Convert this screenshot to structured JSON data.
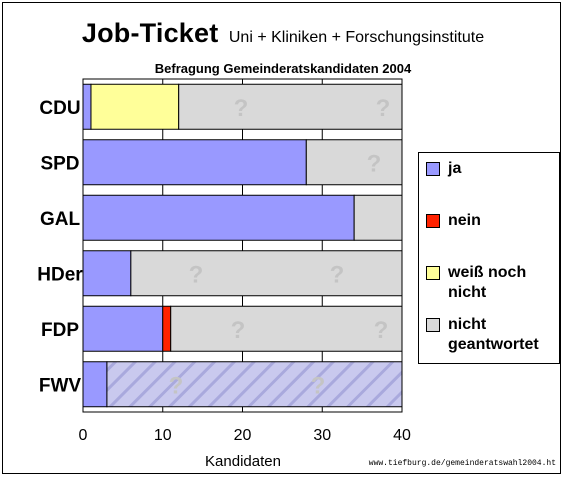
{
  "title": "Job-Ticket",
  "title_suffix": "Uni + Kliniken + Forschungsinstitute",
  "subtitle": "Befragung Gemeinderatskandidaten 2004",
  "footer": "www.tiefburg.de/gemeinderatswahl2004.ht",
  "legend": [
    {
      "label": "ja",
      "color": "#9999ff"
    },
    {
      "label": "nein",
      "color": "#ff2200"
    },
    {
      "label": "weiß noch nicht",
      "color": "#ffff99"
    },
    {
      "label": "nicht geantwortet",
      "color": "#d9d9d9"
    }
  ],
  "chart_data": {
    "type": "bar",
    "orientation": "horizontal",
    "stacked": true,
    "categories": [
      "CDU",
      "SPD",
      "GAL",
      "HDer",
      "FDP",
      "FWV"
    ],
    "series": [
      {
        "name": "ja",
        "color": "#9999ff",
        "values": [
          1,
          28,
          34,
          6,
          10,
          3
        ]
      },
      {
        "name": "nein",
        "color": "#ff2200",
        "values": [
          0,
          0,
          0,
          0,
          1,
          0
        ]
      },
      {
        "name": "weiß noch nicht",
        "color": "#ffff99",
        "values": [
          11,
          0,
          0,
          0,
          0,
          0
        ]
      },
      {
        "name": "nicht geantwortet",
        "color": "#d9d9d9",
        "values": [
          28,
          12,
          6,
          34,
          29,
          37
        ]
      }
    ],
    "xlabel": "Kandidaten",
    "xlim": [
      0,
      40
    ],
    "xticks": [
      0,
      10,
      20,
      30,
      40
    ],
    "grid": true,
    "legend_position": "right"
  }
}
